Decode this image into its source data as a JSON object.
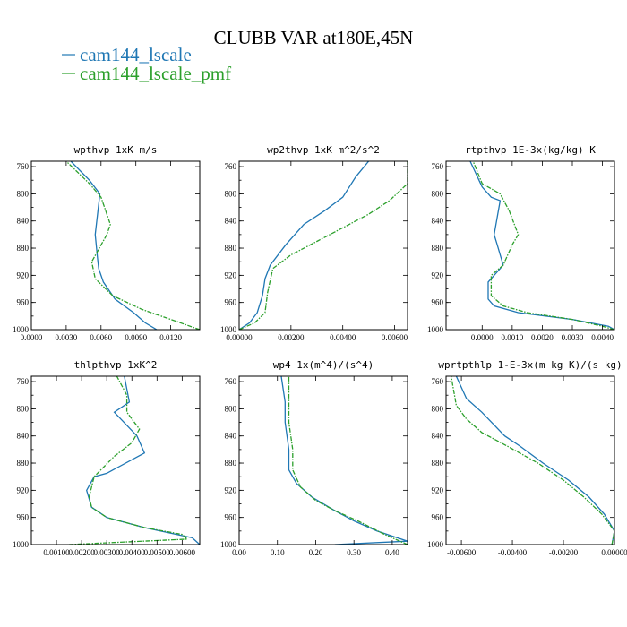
{
  "figure": {
    "title": "CLUBB VAR at180E,45N"
  },
  "legend": [
    {
      "label": "cam144_lscale",
      "color": "#1f77b4"
    },
    {
      "label": "cam144_lscale_pmf",
      "color": "#2ca02c"
    }
  ],
  "chart_data": [
    {
      "type": "line",
      "title": "wpthvp 1xK m/s",
      "ylim": [
        1000,
        752
      ],
      "xlim": [
        0.0,
        0.0145
      ],
      "xticks": [
        0.0,
        0.003,
        0.006,
        0.009,
        0.012
      ],
      "xticklabels": [
        "0.0000",
        "0.0030",
        "0.0060",
        "0.0090",
        "0.0120"
      ],
      "yticks": [
        760,
        800,
        840,
        880,
        920,
        960,
        1000
      ],
      "series": [
        {
          "name": "cam144_lscale",
          "color": "#1f77b4",
          "x": [
            0.0108,
            0.0098,
            0.0088,
            0.0072,
            0.0062,
            0.0058,
            0.0057,
            0.0055,
            0.0059,
            0.005,
            0.0034
          ],
          "y": [
            1000,
            990,
            975,
            955,
            930,
            910,
            895,
            860,
            800,
            780,
            752
          ]
        },
        {
          "name": "cam144_lscale_pmf",
          "color": "#2ca02c",
          "dashed": true,
          "x": [
            0.0145,
            0.012,
            0.0095,
            0.007,
            0.0055,
            0.0052,
            0.0065,
            0.0068,
            0.006,
            0.005,
            0.003
          ],
          "y": [
            1000,
            985,
            970,
            950,
            925,
            900,
            860,
            845,
            805,
            785,
            752
          ]
        }
      ]
    },
    {
      "type": "line",
      "title": "wp2thvp 1xK m^2/s^2",
      "ylim": [
        1000,
        752
      ],
      "xlim": [
        0.0,
        0.0065
      ],
      "xticks": [
        0.0,
        0.002,
        0.004,
        0.006
      ],
      "xticklabels": [
        "0.00000",
        "0.00200",
        "0.00400",
        "0.00600"
      ],
      "yticks": [
        760,
        800,
        840,
        880,
        920,
        960,
        1000
      ],
      "series": [
        {
          "name": "cam144_lscale",
          "color": "#1f77b4",
          "x": [
            0.0,
            0.0004,
            0.0007,
            0.0009,
            0.001,
            0.0012,
            0.0018,
            0.0025,
            0.0033,
            0.004,
            0.0045,
            0.005
          ],
          "y": [
            1000,
            990,
            975,
            950,
            925,
            905,
            875,
            845,
            825,
            805,
            775,
            752
          ]
        },
        {
          "name": "cam144_lscale_pmf",
          "color": "#2ca02c",
          "dashed": true,
          "x": [
            0.0,
            0.0006,
            0.001,
            0.0011,
            0.0013,
            0.002,
            0.003,
            0.004,
            0.005,
            0.0058,
            0.0065,
            0.0065
          ],
          "y": [
            1000,
            990,
            975,
            945,
            910,
            890,
            870,
            850,
            830,
            810,
            785,
            752
          ]
        }
      ]
    },
    {
      "type": "line",
      "title": "rtpthvp 1E-3x(kg/kg) K",
      "ylim": [
        1000,
        752
      ],
      "xlim": [
        -0.0012,
        0.0044
      ],
      "xticks": [
        0.0,
        0.001,
        0.002,
        0.003,
        0.004
      ],
      "xticklabels": [
        "0.0000",
        "0.0010",
        "0.0020",
        "0.0030",
        "0.0040"
      ],
      "yticks": [
        760,
        800,
        840,
        880,
        920,
        960,
        1000
      ],
      "series": [
        {
          "name": "cam144_lscale",
          "color": "#1f77b4",
          "x": [
            0.0044,
            0.0042,
            0.003,
            0.0012,
            0.0004,
            0.0002,
            0.0002,
            0.0007,
            0.0005,
            0.0004,
            0.0006,
            0.0003,
            0.0,
            -0.0004
          ],
          "y": [
            1000,
            995,
            985,
            975,
            965,
            955,
            930,
            905,
            875,
            860,
            810,
            805,
            790,
            752
          ]
        },
        {
          "name": "cam144_lscale_pmf",
          "color": "#2ca02c",
          "dashed": true,
          "x": [
            0.0044,
            0.004,
            0.003,
            0.0015,
            0.0007,
            0.0003,
            0.0003,
            0.0007,
            0.001,
            0.0012,
            0.0009,
            0.0006,
            0.0,
            -0.0003
          ],
          "y": [
            1000,
            995,
            985,
            975,
            965,
            950,
            920,
            905,
            875,
            860,
            825,
            800,
            785,
            752
          ]
        }
      ]
    },
    {
      "type": "line",
      "title": "thlpthvp 1xK^2",
      "ylim": [
        1000,
        752
      ],
      "xlim": [
        0.0,
        0.0067
      ],
      "xticks": [
        0.001,
        0.002,
        0.003,
        0.004,
        0.005,
        0.006
      ],
      "xticklabels": [
        "0.00100",
        "0.00200",
        "0.00300",
        "0.00400",
        "0.00500",
        "0.00600"
      ],
      "yticks": [
        760,
        800,
        840,
        880,
        920,
        960,
        1000
      ],
      "series": [
        {
          "name": "cam144_lscale",
          "color": "#1f77b4",
          "x": [
            0.0067,
            0.0064,
            0.0045,
            0.003,
            0.0024,
            0.0022,
            0.0025,
            0.003,
            0.0045,
            0.0042,
            0.0033,
            0.0039,
            0.0037
          ],
          "y": [
            1000,
            990,
            975,
            960,
            945,
            920,
            900,
            895,
            865,
            840,
            805,
            790,
            752
          ]
        },
        {
          "name": "cam144_lscale_pmf",
          "color": "#2ca02c",
          "dashed": true,
          "x": [
            0.0015,
            0.0062,
            0.006,
            0.0045,
            0.003,
            0.0024,
            0.0023,
            0.0025,
            0.0033,
            0.004,
            0.0043,
            0.0038,
            0.0038,
            0.0034
          ],
          "y": [
            1000,
            992,
            985,
            975,
            960,
            945,
            930,
            900,
            870,
            850,
            830,
            805,
            780,
            752
          ]
        }
      ]
    },
    {
      "type": "line",
      "title": "wp4 1x(m^4)/(s^4)",
      "ylim": [
        1000,
        752
      ],
      "xlim": [
        0.0,
        0.44
      ],
      "xticks": [
        0.0,
        0.1,
        0.2,
        0.3,
        0.4
      ],
      "xticklabels": [
        "0.00",
        "0.10",
        "0.20",
        "0.30",
        "0.40"
      ],
      "yticks": [
        760,
        800,
        840,
        880,
        920,
        960,
        1000
      ],
      "series": [
        {
          "name": "cam144_lscale",
          "color": "#1f77b4",
          "x": [
            0.25,
            0.44,
            0.36,
            0.3,
            0.25,
            0.19,
            0.15,
            0.13,
            0.13,
            0.12,
            0.12,
            0.11
          ],
          "y": [
            1000,
            995,
            980,
            965,
            950,
            930,
            910,
            890,
            860,
            820,
            790,
            752
          ]
        },
        {
          "name": "cam144_lscale_pmf",
          "color": "#2ca02c",
          "dashed": true,
          "x": [
            0.44,
            0.38,
            0.31,
            0.25,
            0.2,
            0.16,
            0.14,
            0.14,
            0.13,
            0.13,
            0.13
          ],
          "y": [
            1000,
            985,
            965,
            950,
            935,
            915,
            890,
            860,
            820,
            790,
            752
          ]
        }
      ]
    },
    {
      "type": "line",
      "title": "wprtpthlp 1-E-3x(m kg K)/(s kg)",
      "ylim": [
        1000,
        752
      ],
      "xlim": [
        -0.0066,
        0.0
      ],
      "xticks": [
        -0.006,
        -0.004,
        -0.002,
        0.0
      ],
      "xticklabels": [
        "-0.00600",
        "-0.00400",
        "-0.00200",
        "0.00000"
      ],
      "yticks": [
        760,
        800,
        840,
        880,
        920,
        960,
        1000
      ],
      "series": [
        {
          "name": "cam144_lscale",
          "color": "#1f77b4",
          "x": [
            -0.0001,
            0.0,
            -0.0004,
            -0.001,
            -0.0018,
            -0.0028,
            -0.0037,
            -0.0043,
            -0.0052,
            -0.0058,
            -0.0062
          ],
          "y": [
            1000,
            980,
            955,
            930,
            905,
            880,
            855,
            840,
            805,
            785,
            752
          ]
        },
        {
          "name": "cam144_lscale_pmf",
          "color": "#2ca02c",
          "dashed": true,
          "x": [
            -0.0001,
            0.0,
            -0.0005,
            -0.0012,
            -0.002,
            -0.003,
            -0.0042,
            -0.0052,
            -0.0058,
            -0.0062,
            -0.0064
          ],
          "y": [
            1000,
            980,
            955,
            930,
            905,
            880,
            855,
            835,
            815,
            795,
            752
          ]
        }
      ]
    }
  ]
}
